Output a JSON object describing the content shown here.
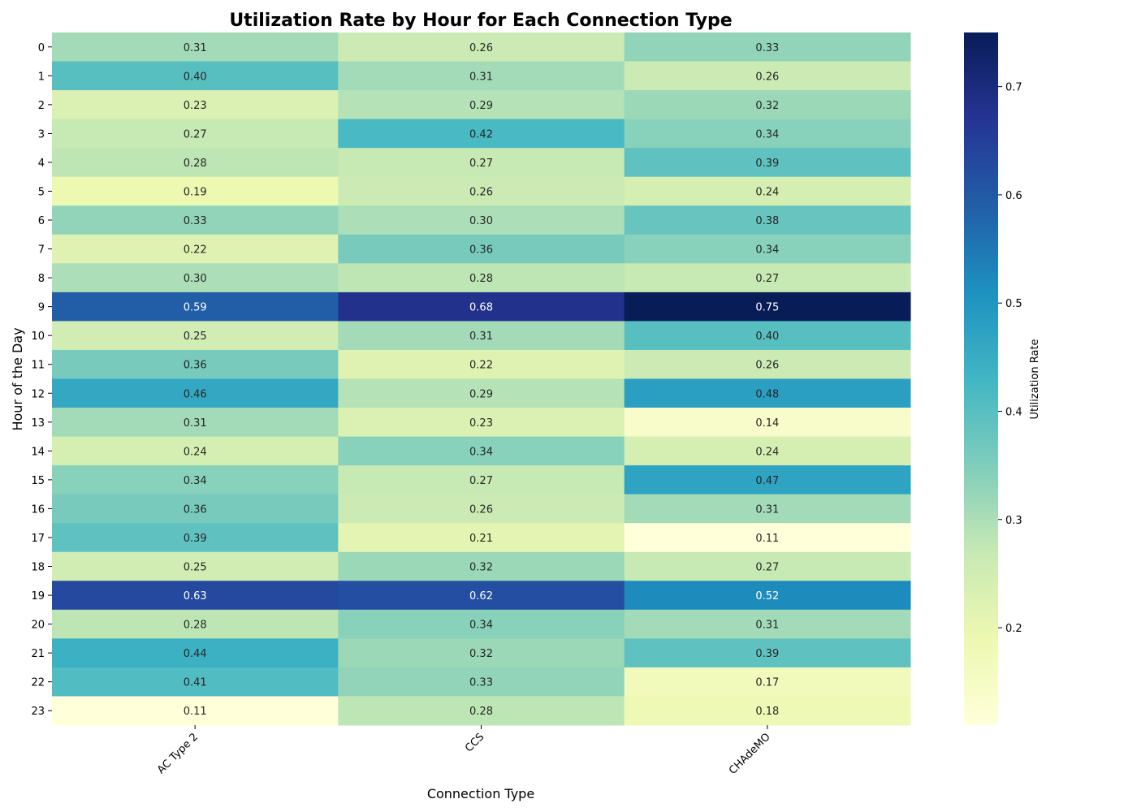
{
  "chart_data": {
    "type": "heatmap",
    "title": "Utilization Rate by Hour for Each Connection Type",
    "xlabel": "Connection Type",
    "ylabel": "Hour of the Day",
    "x_categories": [
      "AC Type 2",
      "CCS",
      "CHAdeMO"
    ],
    "y_categories": [
      "0",
      "1",
      "2",
      "3",
      "4",
      "5",
      "6",
      "7",
      "8",
      "9",
      "10",
      "11",
      "12",
      "13",
      "14",
      "15",
      "16",
      "17",
      "18",
      "19",
      "20",
      "21",
      "22",
      "23"
    ],
    "values": [
      [
        0.31,
        0.26,
        0.33
      ],
      [
        0.4,
        0.31,
        0.26
      ],
      [
        0.23,
        0.29,
        0.32
      ],
      [
        0.27,
        0.42,
        0.34
      ],
      [
        0.28,
        0.27,
        0.39
      ],
      [
        0.19,
        0.26,
        0.24
      ],
      [
        0.33,
        0.3,
        0.38
      ],
      [
        0.22,
        0.36,
        0.34
      ],
      [
        0.3,
        0.28,
        0.27
      ],
      [
        0.59,
        0.68,
        0.75
      ],
      [
        0.25,
        0.31,
        0.4
      ],
      [
        0.36,
        0.22,
        0.26
      ],
      [
        0.46,
        0.29,
        0.48
      ],
      [
        0.31,
        0.23,
        0.14
      ],
      [
        0.24,
        0.34,
        0.24
      ],
      [
        0.34,
        0.27,
        0.47
      ],
      [
        0.36,
        0.26,
        0.31
      ],
      [
        0.39,
        0.21,
        0.11
      ],
      [
        0.25,
        0.32,
        0.27
      ],
      [
        0.63,
        0.62,
        0.52
      ],
      [
        0.28,
        0.34,
        0.31
      ],
      [
        0.44,
        0.32,
        0.39
      ],
      [
        0.41,
        0.33,
        0.17
      ],
      [
        0.11,
        0.28,
        0.18
      ]
    ],
    "value_format_decimals": 2,
    "colormap": "YlGnBu",
    "color_range": [
      0.11,
      0.75
    ],
    "colorbar": {
      "label": "Utilization Rate",
      "ticks": [
        0.2,
        0.3,
        0.4,
        0.5,
        0.6,
        0.7
      ],
      "tick_labels": [
        "0.2",
        "0.3",
        "0.4",
        "0.5",
        "0.6",
        "0.7"
      ]
    },
    "grid": false
  }
}
